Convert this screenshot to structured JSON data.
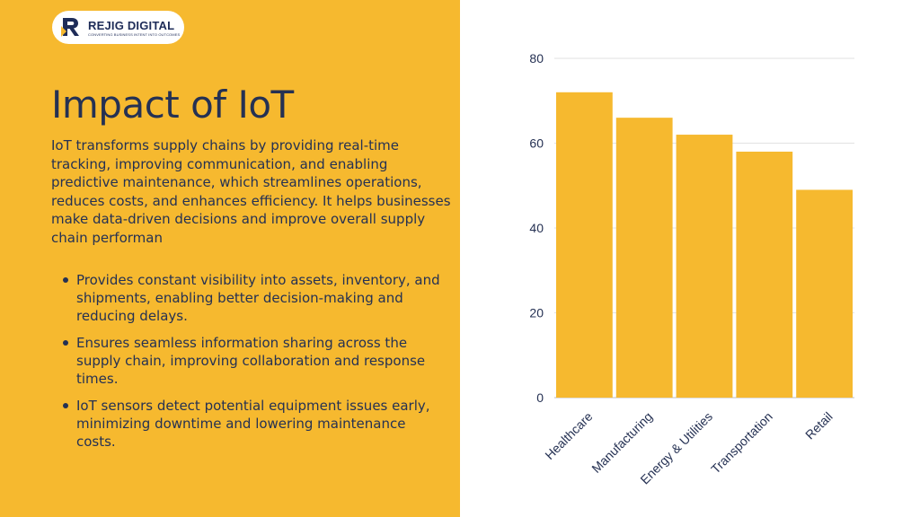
{
  "brand": {
    "name": "REJIG DIGITAL",
    "tagline": "CONVERTING BUSINESS INTENT INTO OUTCOMES"
  },
  "colors": {
    "panel": "#F6B92F",
    "text": "#253153",
    "bar": "#F6B92F"
  },
  "heading": "Impact of IoT",
  "paragraph": "IoT transforms supply chains by providing real-time tracking, improving communication, and enabling predictive maintenance, which streamlines operations, reduces costs, and enhances efficiency. It helps businesses make data-driven decisions and improve overall supply chain performan",
  "bullets": [
    " Provides constant visibility into assets, inventory, and shipments, enabling better decision-making and reducing delays.",
    "Ensures seamless information sharing across the supply chain, improving collaboration and response times.",
    " IoT sensors detect potential equipment issues early, minimizing downtime and lowering maintenance costs."
  ],
  "chart_data": {
    "type": "bar",
    "categories": [
      "Healthcare",
      "Manufacturing",
      "Energy & Utilities",
      "Transportation",
      "Retail"
    ],
    "values": [
      72,
      66,
      62,
      58,
      49
    ],
    "ylim": [
      0,
      80
    ],
    "yticks": [
      0,
      20,
      40,
      60,
      80
    ],
    "grid": true,
    "title": "",
    "xlabel": "",
    "ylabel": ""
  }
}
